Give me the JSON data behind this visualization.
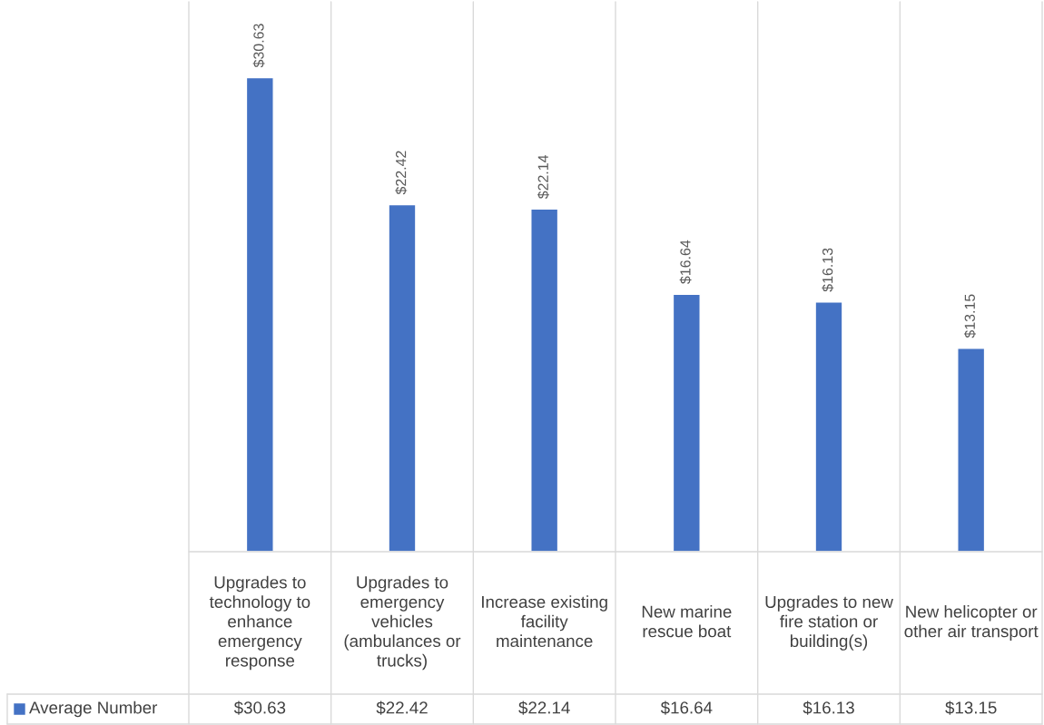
{
  "chart_data": {
    "type": "bar",
    "categories": [
      "Upgrades to technology to enhance emergency response",
      "Upgrades to emergency vehicles (ambulances or trucks)",
      "Increase existing facility maintenance",
      "New marine rescue boat",
      "Upgrades to new fire station or building(s)",
      "New helicopter or other air transport"
    ],
    "series": [
      {
        "name": "Average Number",
        "color": "#4472c4",
        "values": [
          30.63,
          22.42,
          22.14,
          16.64,
          16.13,
          13.15
        ],
        "value_labels": [
          "$30.63",
          "$22.42",
          "$22.14",
          "$16.64",
          "$16.13",
          "$13.15"
        ]
      }
    ],
    "grid": "x",
    "legend": "bottom"
  }
}
